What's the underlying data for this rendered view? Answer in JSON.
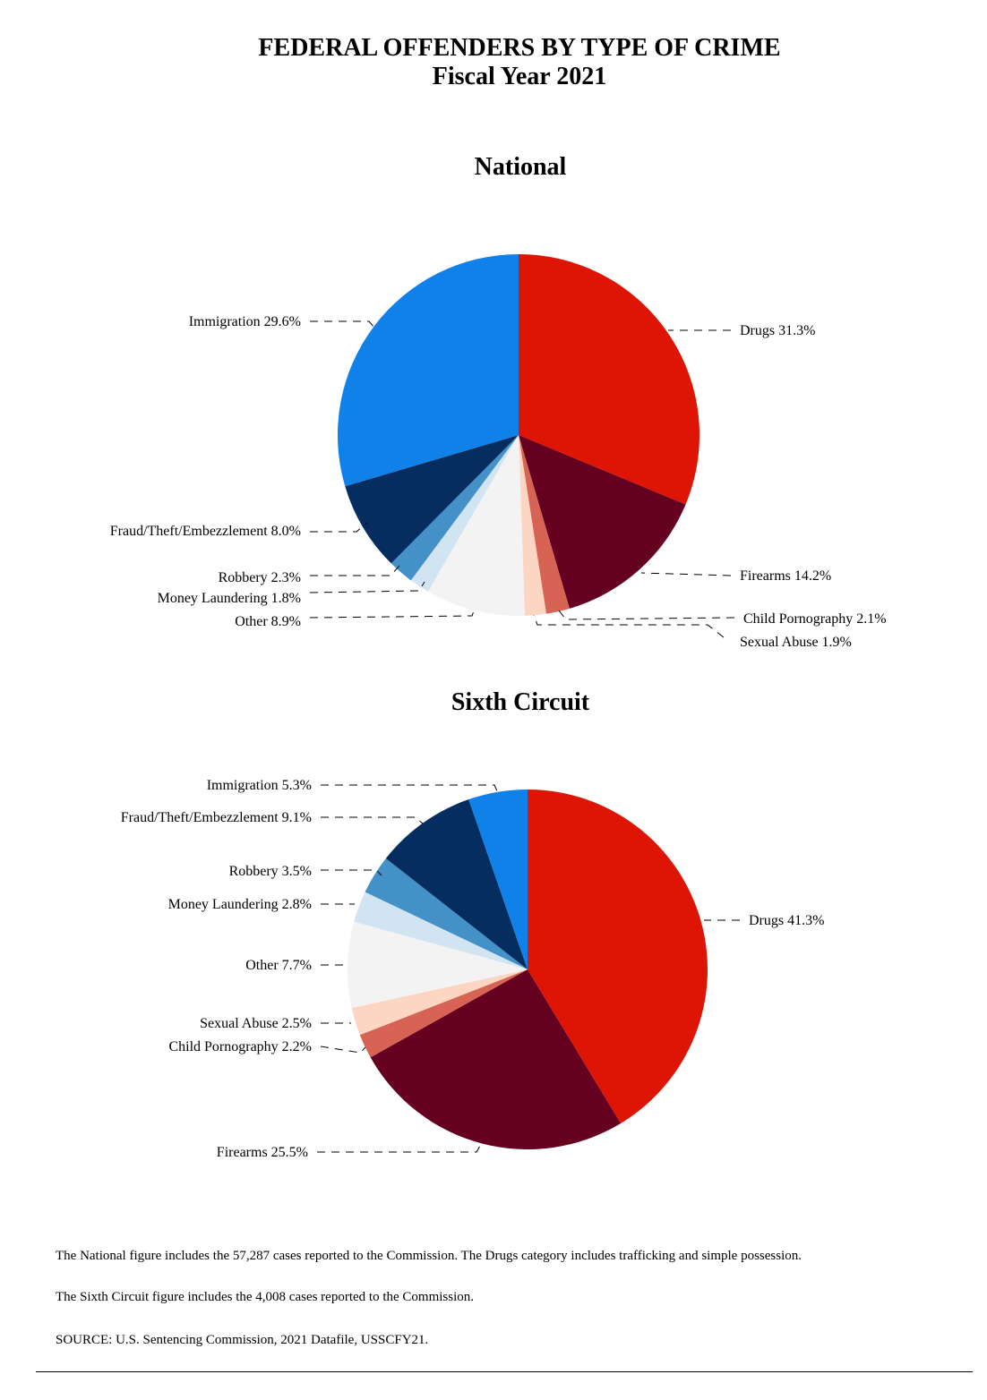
{
  "header": {
    "title": "FEDERAL OFFENDERS BY TYPE OF CRIME",
    "subtitle": "Fiscal Year 2021"
  },
  "chart_data": [
    {
      "type": "pie",
      "title": "National",
      "categories": [
        "Drugs",
        "Firearms",
        "Child Pornography",
        "Sexual Abuse",
        "Other",
        "Money Laundering",
        "Robbery",
        "Fraud/Theft/Embezzlement",
        "Immigration"
      ],
      "values": [
        31.3,
        14.2,
        2.1,
        1.9,
        8.9,
        1.8,
        2.3,
        8.0,
        29.6
      ],
      "labels": [
        "Drugs 31.3%",
        "Firearms 14.2%",
        "Child Pornography 2.1%",
        "Sexual Abuse 1.9%",
        "Other 8.9%",
        "Money Laundering 1.8%",
        "Robbery 2.3%",
        "Fraud/Theft/Embezzlement 8.0%",
        "Immigration 29.6%"
      ],
      "colors": [
        "#de1505",
        "#650020",
        "#d66353",
        "#fcd6c3",
        "#f3f3f3",
        "#d1e4f1",
        "#4391c6",
        "#052d5f",
        "#1081e8"
      ],
      "start": "12 o'clock, clockwise"
    },
    {
      "type": "pie",
      "title": "Sixth Circuit",
      "categories": [
        "Drugs",
        "Firearms",
        "Child Pornography",
        "Sexual Abuse",
        "Other",
        "Money Laundering",
        "Robbery",
        "Fraud/Theft/Embezzlement",
        "Immigration"
      ],
      "values": [
        41.3,
        25.5,
        2.2,
        2.5,
        7.7,
        2.8,
        3.5,
        9.1,
        5.3
      ],
      "labels": [
        "Drugs 41.3%",
        "Firearms 25.5%",
        "Child Pornography 2.2%",
        "Sexual Abuse 2.5%",
        "Other 7.7%",
        "Money Laundering 2.8%",
        "Robbery 3.5%",
        "Fraud/Theft/Embezzlement 9.1%",
        "Immigration 5.3%"
      ],
      "colors": [
        "#de1505",
        "#650020",
        "#d66353",
        "#fcd6c3",
        "#f3f3f3",
        "#d1e4f1",
        "#4391c6",
        "#052d5f",
        "#1081e8"
      ],
      "start": "12 o'clock, clockwise"
    }
  ],
  "notes": {
    "national": "The National figure includes the 57,287 cases reported to the Commission. The Drugs category includes trafficking and simple possession.",
    "circuit": "The Sixth Circuit figure includes the 4,008 cases reported to the Commission.",
    "source": "SOURCE:  U.S. Sentencing Commission, 2021 Datafile, USSCFY21."
  }
}
